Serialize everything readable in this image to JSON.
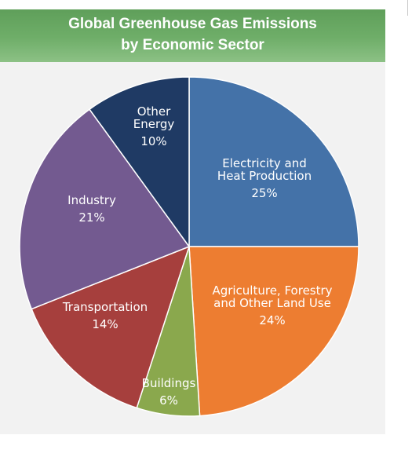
{
  "chart_data": {
    "type": "pie",
    "title_lines": [
      "Global Greenhouse Gas Emissions",
      "by Economic Sector"
    ],
    "slices": [
      {
        "label_lines": [
          "Electricity and",
          "Heat Production"
        ],
        "value_label": "25%",
        "value": 25,
        "color": "#4472a8"
      },
      {
        "label_lines": [
          "Agriculture, Forestry",
          "and Other Land Use"
        ],
        "value_label": "24%",
        "value": 24,
        "color": "#ed7d31"
      },
      {
        "label_lines": [
          "Buildings"
        ],
        "value_label": "6%",
        "value": 6,
        "color": "#8aa84d"
      },
      {
        "label_lines": [
          "Transportation"
        ],
        "value_label": "14%",
        "value": 14,
        "color": "#a63f3d"
      },
      {
        "label_lines": [
          "Industry"
        ],
        "value_label": "21%",
        "value": 21,
        "color": "#735a90"
      },
      {
        "label_lines": [
          "Other",
          "Energy"
        ],
        "value_label": "10%",
        "value": 10,
        "color": "#1f3a64"
      }
    ]
  }
}
